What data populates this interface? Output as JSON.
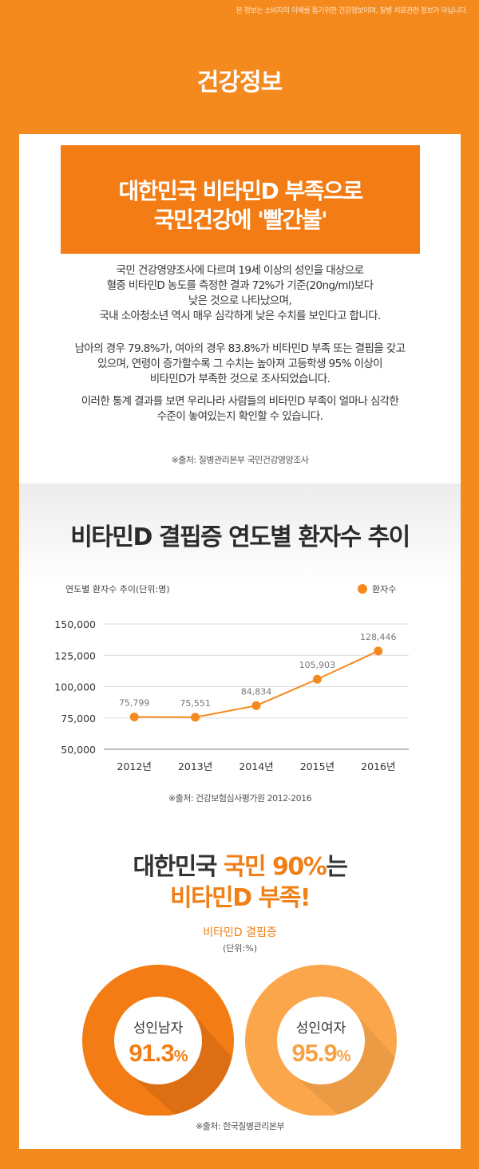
{
  "disclaimer": "본 정보는 소비자의 이해를 돕기위한 건강정보이며, 질병 치료관련 정보가 아닙니다.",
  "header_title": "건강정보",
  "banner": {
    "line1": "대한민국 비타민D 부족으로",
    "line2": "국민건강에 '빨간불'"
  },
  "paragraphs": [
    [
      "국민 건강영양조사에 다르며 19세 이상의 성인을 대상으로",
      "혈중 비타민D 농도를 측정한 결과 72%가 기준(20ng/ml)보다",
      "낮은 것으로 나타났으며,",
      "국내 소아청소년 역시 매우 심각하게 낮은 수치를 보인다고 합니다."
    ],
    [
      "남아의 경우 79.8%가, 여아의 경우 83.8%가 비타민D 부족 또는 결핍을 갖고",
      "있으며, 연령이 증가할수록 그 수치는 높아져 고등학생 95% 이상이",
      "비타민D가 부족한 것으로 조사되었습니다."
    ],
    [
      "이러한 통계 결과를 보면 우리나라 사람들의 비타민D 부족이 얼마나 심각한",
      "수준이 놓여있는지 확인할 수 있습니다."
    ]
  ],
  "source1": "※출처: 질병관리본부 국민건강영양조사",
  "source2": "※출처: 건강보험심사평가원 2012-2016",
  "source3": "※출처: 한국질병관리본부",
  "colors": {
    "background": "#f48a1e",
    "accent": "#f37d14",
    "light_orange": "#fba64b"
  },
  "chart_data": [
    {
      "type": "line",
      "title": "비타민D 결핍증 연도별 환자수 추이",
      "ylabel": "연도별 환자수 추이(단위:명)",
      "categories": [
        "2012년",
        "2013년",
        "2014년",
        "2015년",
        "2016년"
      ],
      "series": [
        {
          "name": "환자수",
          "values": [
            75799,
            75551,
            84834,
            105903,
            128446
          ]
        }
      ],
      "data_labels": [
        "75,799",
        "75,551",
        "84,834",
        "105,903",
        "128,446"
      ],
      "yticks": [
        "50,000",
        "75,000",
        "100,000",
        "125,000",
        "150,000"
      ],
      "ylim": [
        50000,
        150000
      ],
      "grid": true,
      "legend": "top-right"
    },
    {
      "type": "pie",
      "title": "대한민국 국민 90%는 비타민D 부족!",
      "subtitle": "비타민D 결핍증",
      "unit": "(단위:%)",
      "items": [
        {
          "label": "성인남자",
          "value": 91.3,
          "value_text": "91.3",
          "percent": "%"
        },
        {
          "label": "성인여자",
          "value": 95.9,
          "value_text": "95.9",
          "percent": "%"
        }
      ]
    }
  ],
  "sec3": {
    "line1_a": "대한민국 ",
    "line1_b": "국민 90%",
    "line1_c": "는",
    "line2": "비타민D 부족!"
  }
}
